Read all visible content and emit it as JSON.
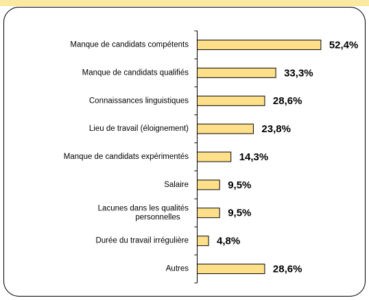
{
  "chart_data": {
    "type": "barh",
    "categories": [
      "Manque de candidats compétents",
      "Manque de candidats qualifiés",
      "Connaissances linguistiques",
      "Lieu de travail (éloignement)",
      "Manque de candidats expérimentés",
      "Salaire",
      "Lacunes dans les qualités\npersonnelles",
      "Durée du travail irrégulière",
      "Autres"
    ],
    "values": [
      52.4,
      33.3,
      28.6,
      23.8,
      14.3,
      9.5,
      9.5,
      4.8,
      28.6
    ],
    "value_labels": [
      "52,4%",
      "33,3%",
      "28,6%",
      "23,8%",
      "14,3%",
      "9,5%",
      "9,5%",
      "4,8%",
      "28,6%"
    ],
    "color": "#ffe08a",
    "xlim": [
      0,
      60
    ]
  }
}
